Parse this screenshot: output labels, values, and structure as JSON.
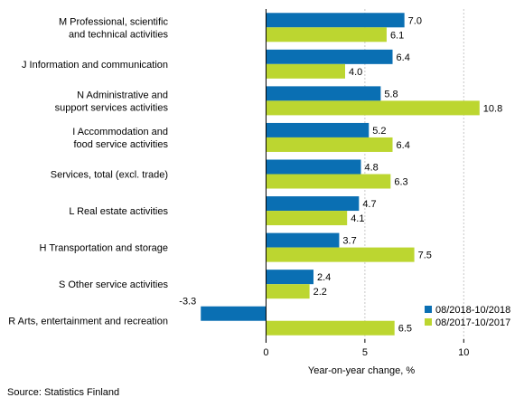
{
  "chart_data": {
    "type": "bar",
    "orientation": "horizontal",
    "categories": [
      [
        "M Professional, scientific",
        "and technical activities"
      ],
      [
        "J Information and communication"
      ],
      [
        "N Administrative and",
        "support services activities"
      ],
      [
        "I Accommodation and",
        "food service activities"
      ],
      [
        "Services, total (excl. trade)"
      ],
      [
        "L Real estate activities"
      ],
      [
        "H Transportation and storage"
      ],
      [
        "S Other service activities"
      ],
      [
        "R Arts, entertainment and recreation"
      ]
    ],
    "series": [
      {
        "name": "08/2018-10/2018",
        "color": "#0a6fb3",
        "values": [
          7.0,
          6.4,
          5.8,
          5.2,
          4.8,
          4.7,
          3.7,
          2.4,
          -3.3
        ]
      },
      {
        "name": "08/2017-10/2017",
        "color": "#bcd630",
        "values": [
          6.1,
          4.0,
          10.8,
          6.4,
          6.3,
          4.1,
          7.5,
          2.2,
          6.5
        ]
      }
    ],
    "xlim": [
      -4.5,
      12.5
    ],
    "xticks": [
      0,
      5,
      10
    ],
    "xlabel": "Year-on-year change, %",
    "grid": "vertical",
    "legend": "bottom-right"
  },
  "source": "Source: Statistics Finland"
}
